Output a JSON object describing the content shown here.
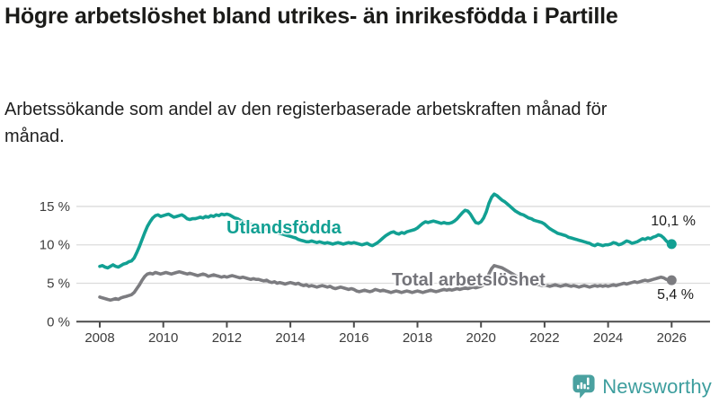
{
  "header": {
    "title": "Högre arbetslöshet bland utrikes- än inrikesfödda i Partille",
    "subtitle": "Arbetssökande som andel av den registerbaserade arbetskraften månad för månad."
  },
  "chart_data": {
    "type": "line",
    "title": "Högre arbetslöshet bland utrikes- än inrikesfödda i Partille",
    "xlabel": "",
    "ylabel": "",
    "unit": "%",
    "x_start_year": 2008,
    "x_step_months": 1,
    "x_end": "2026-01",
    "xlim": [
      2008,
      2026.2
    ],
    "ylim": [
      0,
      17.5
    ],
    "grid": "horizontal",
    "x_tick_values": [
      2008,
      2010,
      2012,
      2014,
      2016,
      2018,
      2020,
      2022,
      2024,
      2026
    ],
    "x_tick_labels": [
      "2008",
      "2010",
      "2012",
      "2014",
      "2016",
      "2018",
      "2020",
      "2022",
      "2024",
      "2026"
    ],
    "y_tick_values": [
      0,
      5,
      10,
      15
    ],
    "y_tick_labels": [
      "0 %",
      "5 %",
      "10 %",
      "15 %"
    ],
    "series": [
      {
        "name": "Utlandsfödda",
        "color": "#12a093",
        "end_label": "10,1 %",
        "end_value": 10.1,
        "values": [
          7.2,
          7.3,
          7.1,
          7.0,
          7.2,
          7.4,
          7.2,
          7.1,
          7.3,
          7.5,
          7.6,
          7.8,
          7.9,
          8.3,
          9.0,
          9.8,
          10.7,
          11.6,
          12.4,
          13.0,
          13.5,
          13.8,
          13.9,
          13.7,
          13.8,
          13.9,
          14.0,
          13.8,
          13.6,
          13.7,
          13.8,
          13.9,
          13.7,
          13.4,
          13.3,
          13.4,
          13.4,
          13.5,
          13.6,
          13.5,
          13.7,
          13.6,
          13.8,
          13.7,
          13.9,
          13.8,
          14.0,
          13.9,
          14.0,
          13.9,
          13.7,
          13.5,
          13.4,
          13.2,
          13.0,
          12.9,
          12.8,
          12.7,
          12.6,
          12.5,
          12.4,
          12.3,
          12.2,
          12.0,
          11.9,
          11.8,
          11.7,
          11.6,
          11.5,
          11.4,
          11.3,
          11.2,
          11.1,
          11.0,
          10.9,
          10.7,
          10.6,
          10.5,
          10.4,
          10.4,
          10.5,
          10.4,
          10.3,
          10.4,
          10.3,
          10.2,
          10.3,
          10.2,
          10.1,
          10.2,
          10.3,
          10.2,
          10.1,
          10.2,
          10.3,
          10.2,
          10.3,
          10.2,
          10.1,
          10.0,
          10.1,
          10.2,
          10.0,
          9.9,
          10.1,
          10.3,
          10.6,
          10.9,
          11.2,
          11.4,
          11.6,
          11.7,
          11.5,
          11.4,
          11.6,
          11.5,
          11.7,
          11.8,
          11.9,
          12.0,
          12.2,
          12.5,
          12.8,
          13.0,
          12.9,
          13.0,
          13.1,
          13.0,
          12.9,
          12.8,
          12.9,
          12.8,
          12.8,
          12.9,
          13.1,
          13.4,
          13.8,
          14.2,
          14.5,
          14.4,
          14.0,
          13.4,
          12.9,
          12.8,
          13.0,
          13.5,
          14.3,
          15.4,
          16.2,
          16.6,
          16.4,
          16.1,
          15.8,
          15.6,
          15.3,
          15.0,
          14.7,
          14.4,
          14.2,
          14.0,
          13.9,
          13.7,
          13.5,
          13.4,
          13.2,
          13.1,
          13.0,
          12.9,
          12.7,
          12.4,
          12.1,
          11.9,
          11.7,
          11.5,
          11.4,
          11.3,
          11.2,
          11.0,
          10.9,
          10.8,
          10.7,
          10.6,
          10.5,
          10.4,
          10.3,
          10.2,
          10.0,
          9.9,
          10.1,
          10.0,
          9.9,
          10.0,
          10.0,
          10.1,
          10.3,
          10.2,
          10.0,
          10.1,
          10.3,
          10.5,
          10.4,
          10.2,
          10.3,
          10.4,
          10.6,
          10.8,
          10.7,
          10.9,
          10.8,
          11.0,
          11.1,
          11.3,
          11.2,
          10.9,
          10.5,
          10.2,
          10.1
        ]
      },
      {
        "name": "Total arbetslöshet",
        "color": "#7c7c80",
        "end_label": "5,4 %",
        "end_value": 5.4,
        "values": [
          3.2,
          3.1,
          3.0,
          2.9,
          2.8,
          2.9,
          3.0,
          2.9,
          3.1,
          3.2,
          3.3,
          3.4,
          3.5,
          3.8,
          4.3,
          4.8,
          5.4,
          5.9,
          6.2,
          6.3,
          6.2,
          6.4,
          6.3,
          6.2,
          6.3,
          6.4,
          6.3,
          6.2,
          6.3,
          6.4,
          6.5,
          6.4,
          6.3,
          6.2,
          6.3,
          6.2,
          6.1,
          6.0,
          6.1,
          6.2,
          6.1,
          5.9,
          6.0,
          6.1,
          6.0,
          5.9,
          5.8,
          5.9,
          5.8,
          5.9,
          6.0,
          5.9,
          5.8,
          5.7,
          5.8,
          5.7,
          5.6,
          5.5,
          5.6,
          5.5,
          5.5,
          5.4,
          5.3,
          5.4,
          5.2,
          5.1,
          5.2,
          5.0,
          5.1,
          5.0,
          4.9,
          5.0,
          5.1,
          5.0,
          4.9,
          5.0,
          4.8,
          4.7,
          4.8,
          4.6,
          4.7,
          4.6,
          4.5,
          4.6,
          4.7,
          4.6,
          4.5,
          4.6,
          4.4,
          4.3,
          4.4,
          4.5,
          4.4,
          4.3,
          4.2,
          4.3,
          4.2,
          4.0,
          3.9,
          4.0,
          4.1,
          4.0,
          3.9,
          4.0,
          4.2,
          4.1,
          4.0,
          4.1,
          4.0,
          3.9,
          3.8,
          3.9,
          4.0,
          3.9,
          3.8,
          3.9,
          4.0,
          3.9,
          3.8,
          3.9,
          4.0,
          3.9,
          3.8,
          3.9,
          4.0,
          4.1,
          4.0,
          3.9,
          4.0,
          4.1,
          4.2,
          4.1,
          4.2,
          4.1,
          4.2,
          4.3,
          4.2,
          4.3,
          4.4,
          4.3,
          4.4,
          4.5,
          4.4,
          4.5,
          4.6,
          4.8,
          5.3,
          6.2,
          6.9,
          7.3,
          7.2,
          7.1,
          7.0,
          6.8,
          6.6,
          6.4,
          6.2,
          6.0,
          5.8,
          5.6,
          5.5,
          5.3,
          5.2,
          5.0,
          4.9,
          4.8,
          4.8,
          4.7,
          4.8,
          4.7,
          4.6,
          4.7,
          4.8,
          4.7,
          4.6,
          4.7,
          4.8,
          4.7,
          4.6,
          4.7,
          4.6,
          4.5,
          4.6,
          4.7,
          4.6,
          4.5,
          4.6,
          4.7,
          4.6,
          4.7,
          4.6,
          4.7,
          4.6,
          4.7,
          4.8,
          4.7,
          4.8,
          4.9,
          5.0,
          4.9,
          5.0,
          5.1,
          5.2,
          5.1,
          5.2,
          5.3,
          5.4,
          5.3,
          5.4,
          5.5,
          5.6,
          5.7,
          5.8,
          5.7,
          5.5,
          5.4,
          5.4
        ]
      }
    ],
    "colors": {
      "grid": "#dcdcdc",
      "axis": "#4b4b4b",
      "tick_text": "#3d3d3d"
    }
  },
  "footer": {
    "brand": "Newsworthy",
    "brand_color": "#3d9e9e"
  }
}
